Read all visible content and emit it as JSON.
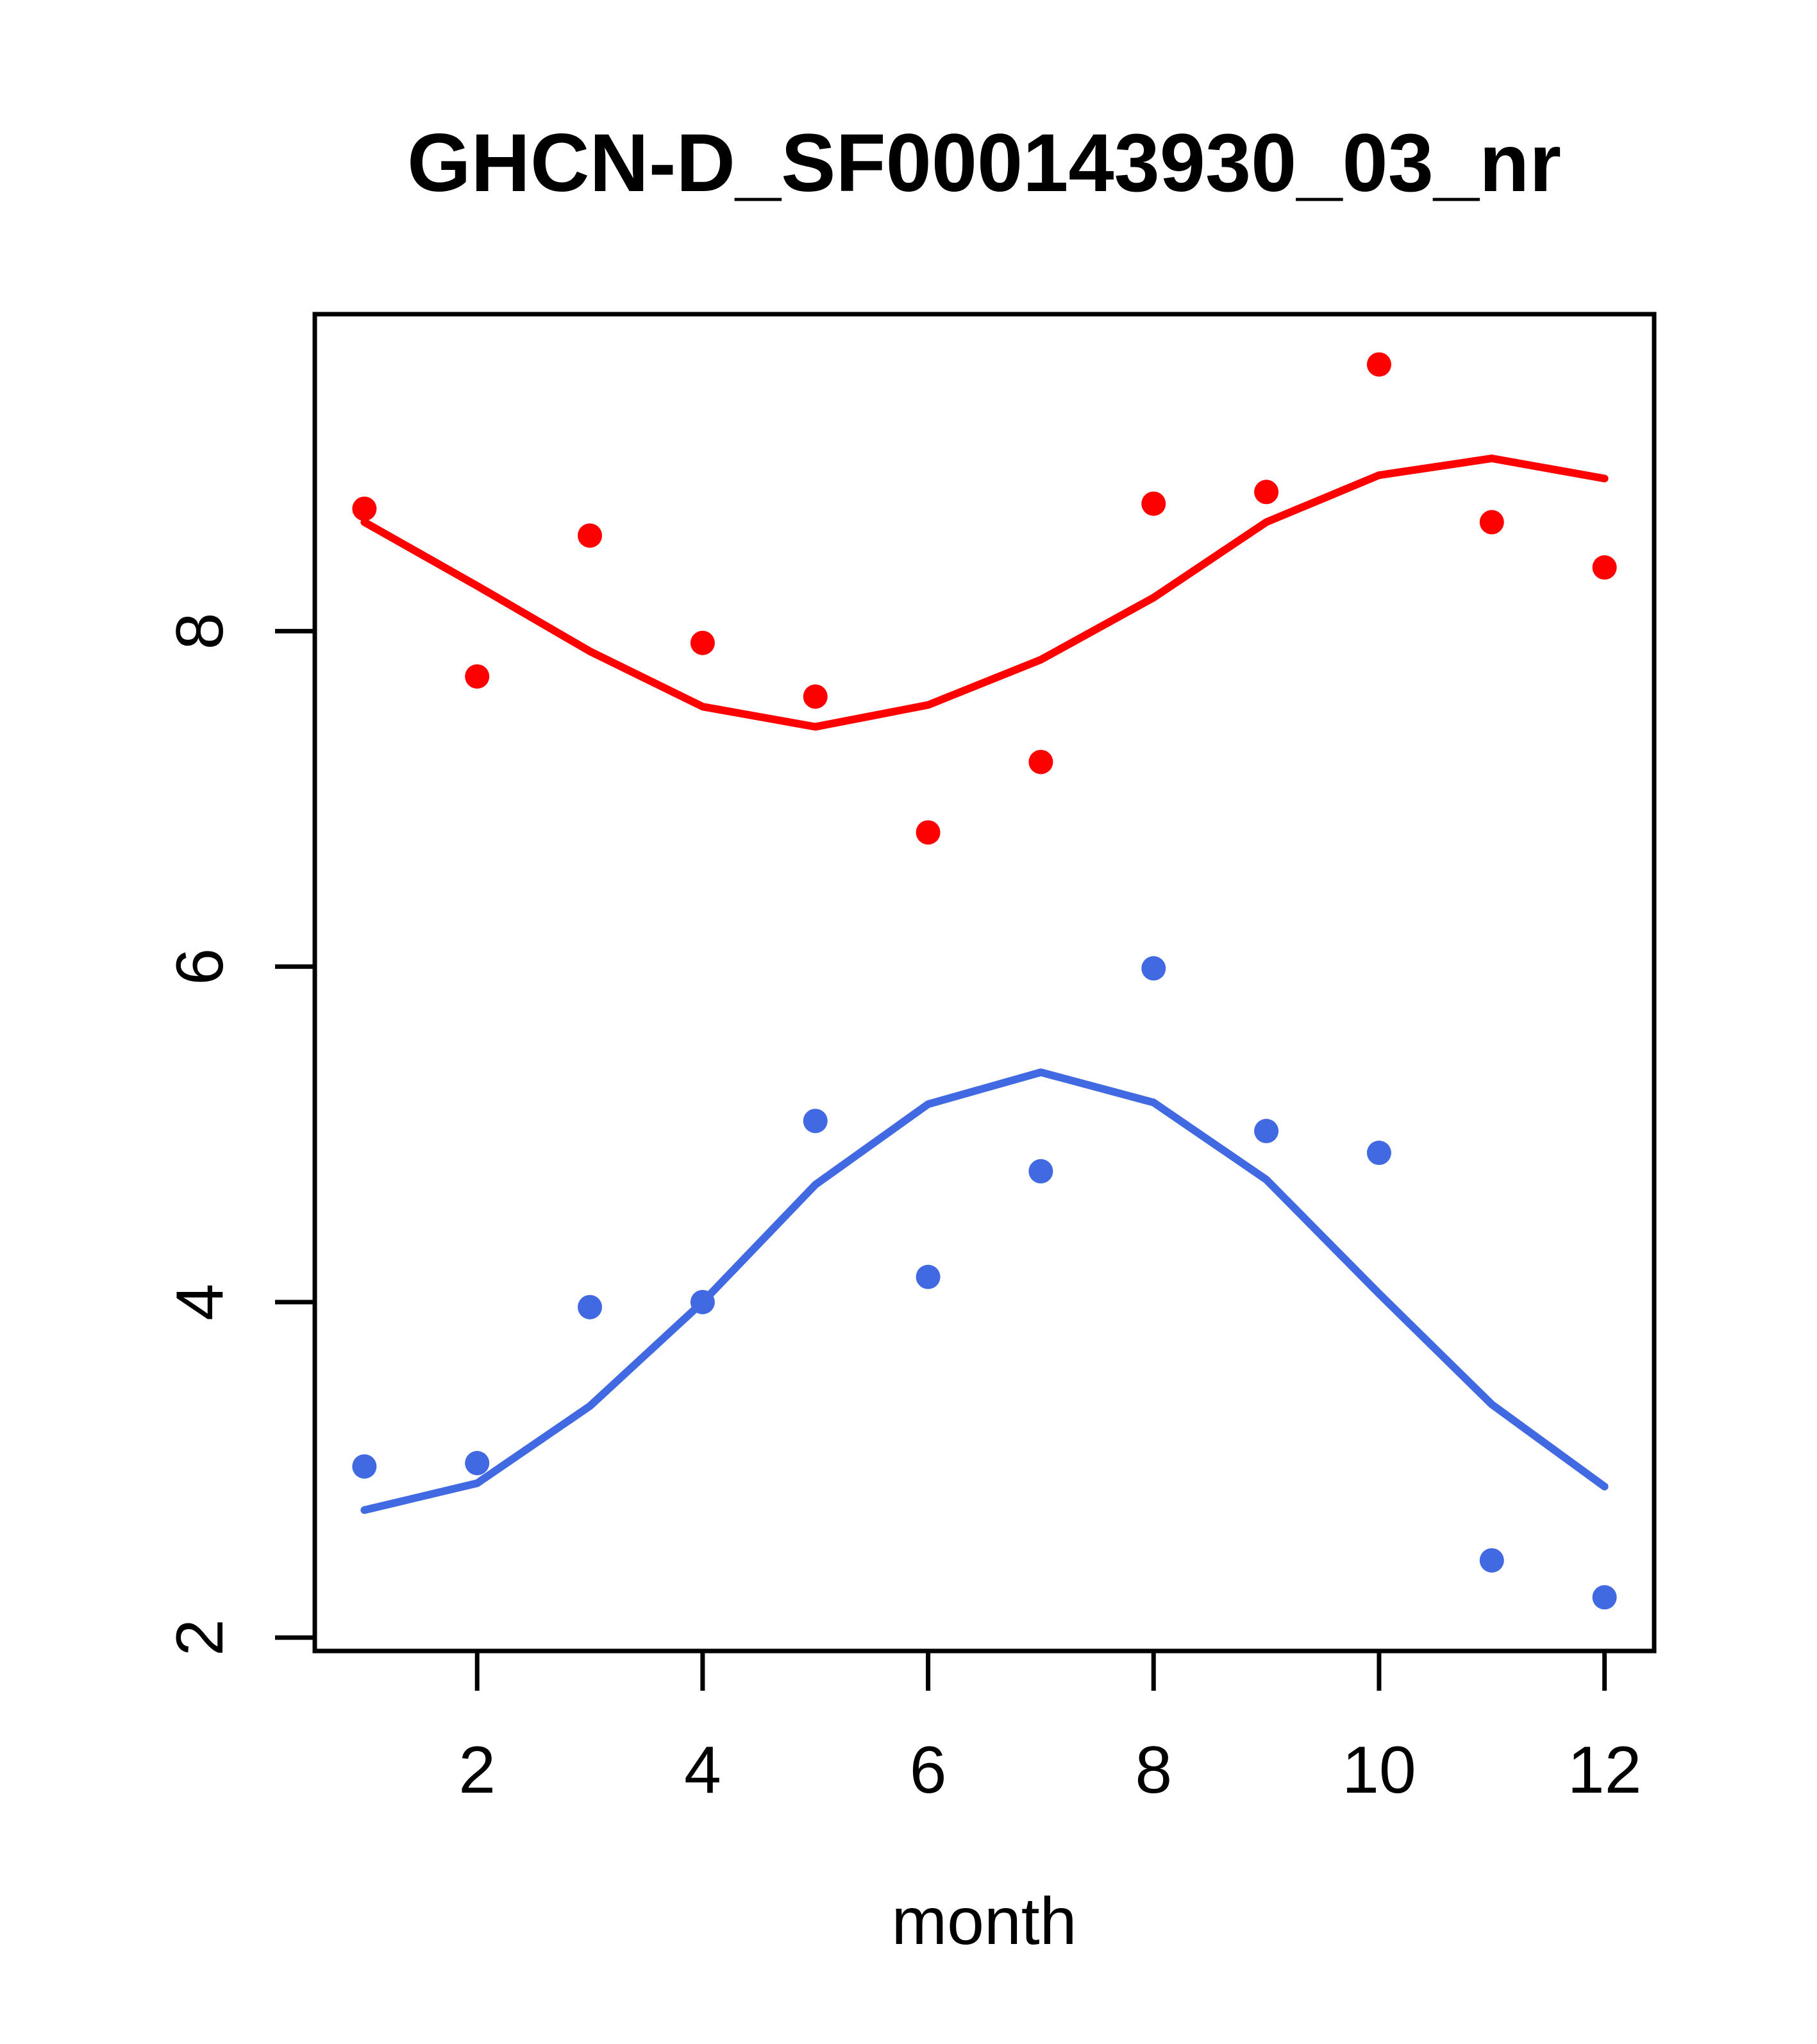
{
  "figure": {
    "title": "GHCN-D_SF000143930_03_nr",
    "x_axis_label": "month"
  },
  "chart_data": {
    "type": "scatter",
    "title": "GHCN-D_SF000143930_03_nr",
    "xlabel": "month",
    "ylabel": "",
    "x": [
      1,
      2,
      3,
      4,
      5,
      6,
      7,
      8,
      9,
      10,
      11,
      12
    ],
    "series": [
      {
        "name": "red-points",
        "kind": "points",
        "color": "#FF0000",
        "values": [
          8.73,
          7.73,
          8.57,
          7.93,
          7.61,
          6.8,
          7.22,
          8.76,
          8.83,
          9.59,
          8.65,
          8.38
        ]
      },
      {
        "name": "red-smooth-line",
        "kind": "line",
        "color": "#FF0000",
        "values": [
          8.65,
          8.27,
          7.88,
          7.55,
          7.43,
          7.56,
          7.83,
          8.2,
          8.65,
          8.93,
          9.03,
          8.91
        ]
      },
      {
        "name": "blue-points",
        "kind": "points",
        "color": "#4169E1",
        "values": [
          3.02,
          3.04,
          3.97,
          4.0,
          5.08,
          4.15,
          4.78,
          5.99,
          5.02,
          4.89,
          2.46,
          2.24
        ]
      },
      {
        "name": "blue-smooth-line",
        "kind": "line",
        "color": "#4169E1",
        "values": [
          2.76,
          2.92,
          3.38,
          4.0,
          4.7,
          5.18,
          5.37,
          5.19,
          4.73,
          4.05,
          3.39,
          2.9
        ]
      }
    ],
    "x_ticks": [
      2,
      4,
      6,
      8,
      10,
      12
    ],
    "y_ticks": [
      2,
      4,
      6,
      8
    ],
    "xlim": [
      0.56,
      12.44
    ],
    "ylim": [
      1.92,
      9.89
    ],
    "grid": false,
    "legend": "none"
  }
}
